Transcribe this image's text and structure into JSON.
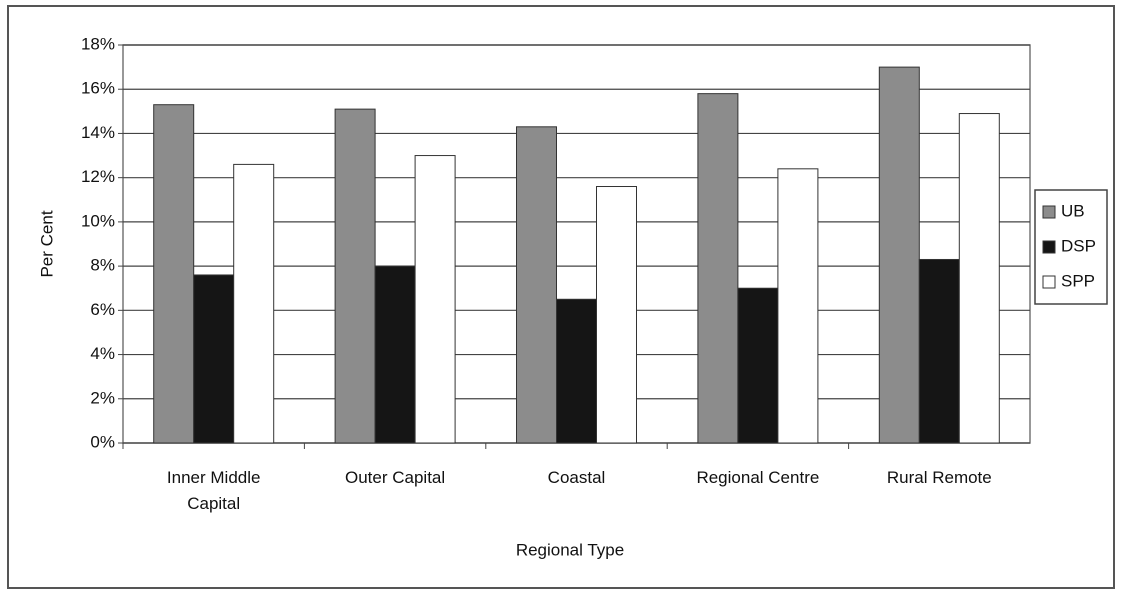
{
  "chart_data": {
    "type": "bar",
    "categories": [
      "Inner Middle Capital",
      "Outer Capital",
      "Coastal",
      "Regional Centre",
      "Rural Remote"
    ],
    "series": [
      {
        "name": "UB",
        "color": "#8c8c8c",
        "values": [
          15.3,
          15.1,
          14.3,
          15.8,
          17.0
        ]
      },
      {
        "name": "DSP",
        "color": "#151515",
        "values": [
          7.6,
          8.0,
          6.5,
          7.0,
          8.3
        ]
      },
      {
        "name": "SPP",
        "color": "#ffffff",
        "values": [
          12.6,
          13.0,
          11.6,
          12.4,
          14.9
        ]
      }
    ],
    "ylim": [
      0,
      18
    ],
    "yticks": [
      {
        "value": 0,
        "label": "0%"
      },
      {
        "value": 2,
        "label": "2%"
      },
      {
        "value": 4,
        "label": "4%"
      },
      {
        "value": 6,
        "label": "6%"
      },
      {
        "value": 8,
        "label": "8%"
      },
      {
        "value": 10,
        "label": "10%"
      },
      {
        "value": 12,
        "label": "12%"
      },
      {
        "value": 14,
        "label": "14%"
      },
      {
        "value": 16,
        "label": "16%"
      },
      {
        "value": 18,
        "label": "18%"
      }
    ],
    "ylabel": "Per Cent",
    "xlabel": "Regional Type",
    "grid": true,
    "legend": "right"
  }
}
